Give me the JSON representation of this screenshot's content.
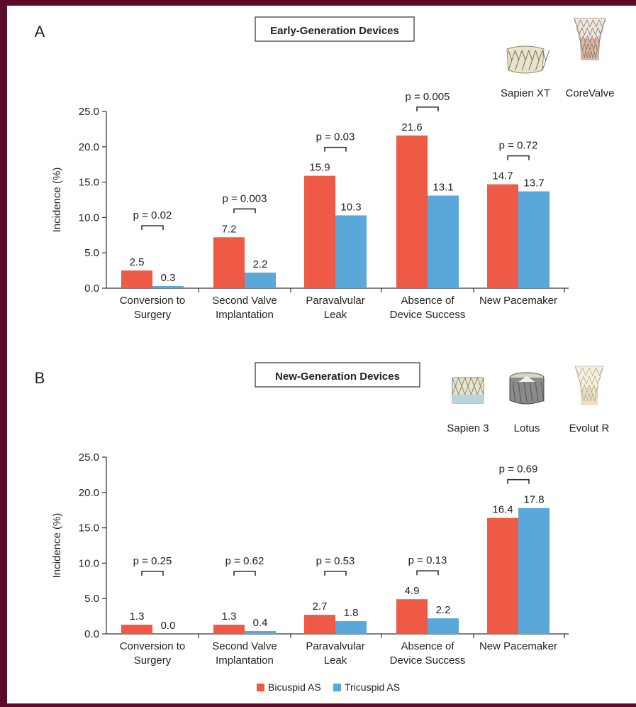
{
  "colors": {
    "bicuspid": "#ee5a45",
    "tricuspid": "#5aa7d9",
    "frame": "#5c0a2a",
    "axis": "#333333"
  },
  "legend": [
    {
      "name": "Bicuspid AS",
      "color": "#ee5a45"
    },
    {
      "name": "Tricuspid AS",
      "color": "#5aa7d9"
    }
  ],
  "chart_data": [
    {
      "type": "bar",
      "panel_label": "A",
      "title": "Early-Generation Devices",
      "devices": [
        "Sapien XT",
        "CoreValve"
      ],
      "ylabel": "Incidence (%)",
      "ylim": [
        0,
        25
      ],
      "yticks": [
        "0.0",
        "5.0",
        "10.0",
        "15.0",
        "20.0",
        "25.0"
      ],
      "categories": [
        [
          "Conversion to",
          "Surgery"
        ],
        [
          "Second Valve",
          "Implantation"
        ],
        [
          "Paravalvular",
          "Leak"
        ],
        [
          "Absence of",
          "Device Success"
        ],
        [
          "New Pacemaker"
        ]
      ],
      "series": [
        {
          "name": "Bicuspid AS",
          "values": [
            2.5,
            7.2,
            15.9,
            21.6,
            14.7
          ],
          "labels": [
            "2.5",
            "7.2",
            "15.9",
            "21.6",
            "14.7"
          ]
        },
        {
          "name": "Tricuspid AS",
          "values": [
            0.3,
            2.2,
            10.3,
            13.1,
            13.7
          ],
          "labels": [
            "0.3",
            "2.2",
            "10.3",
            "13.1",
            "13.7"
          ]
        }
      ],
      "p_values": [
        "p = 0.02",
        "p = 0.003",
        "p = 0.03",
        "p = 0.005",
        "p = 0.72"
      ],
      "legend": false
    },
    {
      "type": "bar",
      "panel_label": "B",
      "title": "New-Generation Devices",
      "devices": [
        "Sapien 3",
        "Lotus",
        "Evolut R"
      ],
      "ylabel": "Incidence (%)",
      "ylim": [
        0,
        25
      ],
      "yticks": [
        "0.0",
        "5.0",
        "10.0",
        "15.0",
        "20.0",
        "25.0"
      ],
      "categories": [
        [
          "Conversion to",
          "Surgery"
        ],
        [
          "Second Valve",
          "Implantation"
        ],
        [
          "Paravalvular",
          "Leak"
        ],
        [
          "Absence of",
          "Device Success"
        ],
        [
          "New Pacemaker"
        ]
      ],
      "series": [
        {
          "name": "Bicuspid AS",
          "values": [
            1.3,
            1.3,
            2.7,
            4.9,
            16.4
          ],
          "labels": [
            "1.3",
            "1.3",
            "2.7",
            "4.9",
            "16.4"
          ]
        },
        {
          "name": "Tricuspid AS",
          "values": [
            0.0,
            0.4,
            1.8,
            2.2,
            17.8
          ],
          "labels": [
            "0.0",
            "0.4",
            "1.8",
            "2.2",
            "17.8"
          ]
        }
      ],
      "p_values": [
        "p = 0.25",
        "p = 0.62",
        "p = 0.53",
        "p = 0.13",
        "p = 0.69"
      ],
      "legend": "bottom-center"
    }
  ]
}
